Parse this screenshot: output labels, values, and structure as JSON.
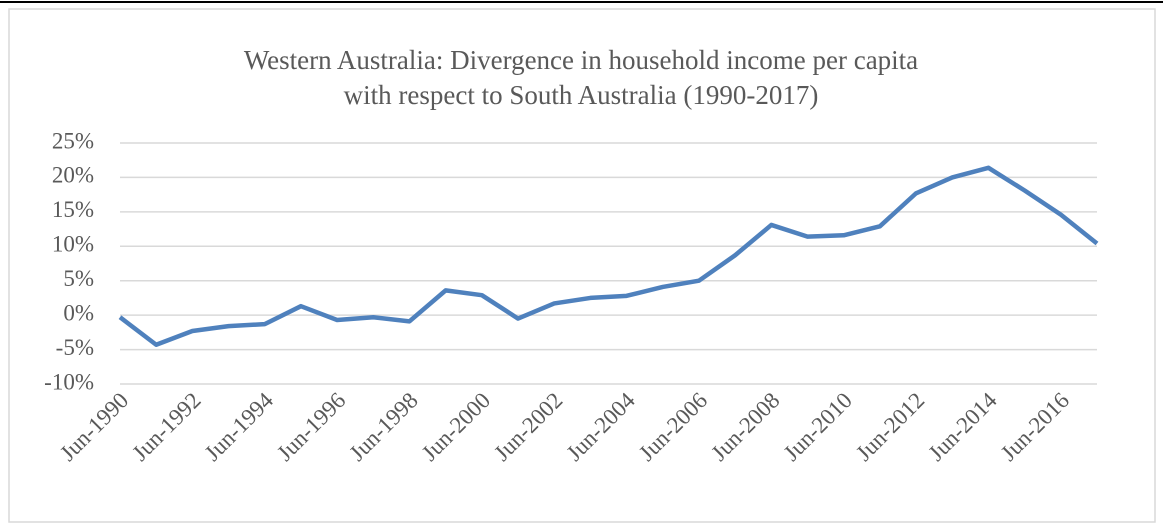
{
  "chart_data": {
    "type": "line",
    "title": "Western Australia: Divergence in household income per capita with respect to South Australia (1990-2017)",
    "categories": [
      "Jun-1990",
      null,
      "Jun-1992",
      null,
      "Jun-1994",
      null,
      "Jun-1996",
      null,
      "Jun-1998",
      null,
      "Jun-2000",
      null,
      "Jun-2002",
      null,
      "Jun-2004",
      null,
      "Jun-2006",
      null,
      "Jun-2008",
      null,
      "Jun-2010",
      null,
      "Jun-2012",
      null,
      "Jun-2014",
      null,
      "Jun-2016",
      null
    ],
    "series": [
      {
        "color": "#4f81bd",
        "values": [
          -0.3,
          -4.3,
          -2.3,
          -1.6,
          -1.3,
          1.3,
          -0.7,
          -0.3,
          -0.9,
          3.6,
          2.9,
          -0.5,
          1.7,
          2.5,
          2.8,
          4.1,
          5.0,
          8.7,
          13.1,
          11.4,
          11.6,
          12.9,
          17.7,
          20.0,
          21.4,
          18.1,
          14.6,
          10.4
        ]
      }
    ],
    "ylim": [
      -10,
      25
    ],
    "yticks": [
      {
        "value": -10,
        "label": "-10%"
      },
      {
        "value": -5,
        "label": "-5%"
      },
      {
        "value": 0,
        "label": "0%"
      },
      {
        "value": 5,
        "label": "5%"
      },
      {
        "value": 10,
        "label": "10%"
      },
      {
        "value": 15,
        "label": "15%"
      },
      {
        "value": 20,
        "label": "20%"
      },
      {
        "value": 25,
        "label": "25%"
      }
    ],
    "grid": true
  }
}
